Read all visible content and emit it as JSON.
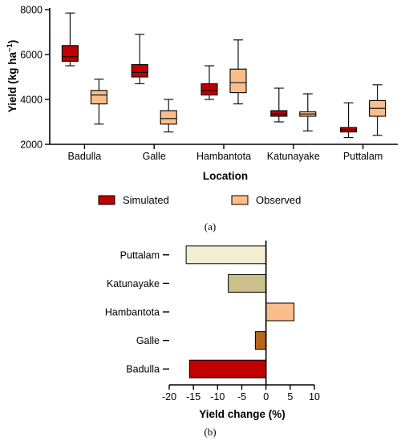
{
  "chart_data": [
    {
      "type": "box",
      "panel_label": "(a)",
      "xlabel": "Location",
      "ylabel": "Yield (kg ha",
      "ylabel_sup": "−1",
      "ylabel_close": ")",
      "ylim": [
        2000,
        8000
      ],
      "yticks": [
        2000,
        4000,
        6000,
        8000
      ],
      "categories": [
        "Badulla",
        "Galle",
        "Hambantota",
        "Katunayake",
        "Puttalam"
      ],
      "legend_position": "bottom",
      "series": [
        {
          "name": "Simulated",
          "color": "#c00000",
          "boxes": [
            {
              "min": 5500,
              "q1": 5700,
              "median": 5900,
              "q3": 6400,
              "max": 7850
            },
            {
              "min": 4700,
              "q1": 5000,
              "median": 5200,
              "q3": 5550,
              "max": 6900
            },
            {
              "min": 4000,
              "q1": 4200,
              "median": 4400,
              "q3": 4700,
              "max": 5500
            },
            {
              "min": 3000,
              "q1": 3250,
              "median": 3350,
              "q3": 3500,
              "max": 4500
            },
            {
              "min": 2300,
              "q1": 2550,
              "median": 2650,
              "q3": 2750,
              "max": 3850
            }
          ]
        },
        {
          "name": "Observed",
          "color": "#f9be8c",
          "boxes": [
            {
              "min": 2900,
              "q1": 3800,
              "median": 4200,
              "q3": 4400,
              "max": 4900
            },
            {
              "min": 2550,
              "q1": 2900,
              "median": 3150,
              "q3": 3500,
              "max": 4000
            },
            {
              "min": 3800,
              "q1": 4300,
              "median": 4750,
              "q3": 5350,
              "max": 6650
            },
            {
              "min": 2600,
              "q1": 3250,
              "median": 3350,
              "q3": 3450,
              "max": 4250
            },
            {
              "min": 2400,
              "q1": 3250,
              "median": 3600,
              "q3": 3950,
              "max": 4650
            }
          ]
        }
      ]
    },
    {
      "type": "bar",
      "orientation": "horizontal",
      "panel_label": "(b)",
      "xlabel": "Yield change (%)",
      "xlim": [
        -20,
        10
      ],
      "xticks": [
        -20,
        -15,
        -10,
        -5,
        0,
        5,
        10
      ],
      "categories": [
        "Puttalam",
        "Katunayake",
        "Hambantota",
        "Galle",
        "Badulla"
      ],
      "values": [
        -16.5,
        -7.8,
        5.8,
        -2.2,
        -15.8
      ],
      "colors": [
        "#f3eed2",
        "#cbbf8a",
        "#f9be8c",
        "#b5651d",
        "#c00000"
      ]
    }
  ]
}
